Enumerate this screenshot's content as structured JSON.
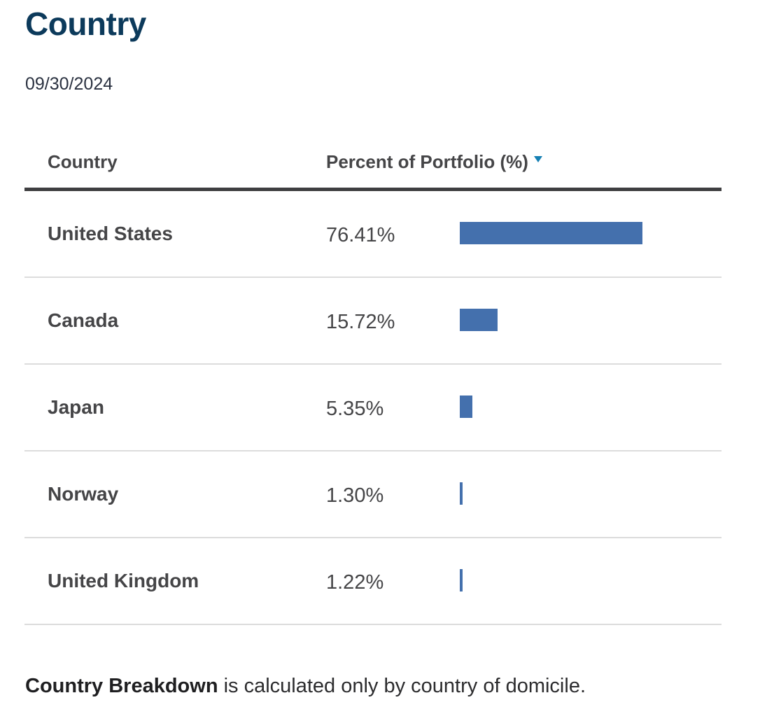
{
  "title": "Country",
  "as_of_date": "09/30/2024",
  "table": {
    "columns": {
      "country": "Country",
      "percent": "Percent of Portfolio (%)"
    },
    "rows": [
      {
        "country": "United States",
        "percent_label": "76.41%",
        "value": 76.41
      },
      {
        "country": "Canada",
        "percent_label": "15.72%",
        "value": 15.72
      },
      {
        "country": "Japan",
        "percent_label": "5.35%",
        "value": 5.35
      },
      {
        "country": "Norway",
        "percent_label": "1.30%",
        "value": 1.3
      },
      {
        "country": "United Kingdom",
        "percent_label": "1.22%",
        "value": 1.22
      }
    ]
  },
  "footnote": {
    "bold": "Country Breakdown",
    "text": " is calculated only by country of domicile."
  },
  "colors": {
    "bar": "#4470ad",
    "title": "#0c3a5b",
    "sort_arrow": "#157fb3"
  }
}
